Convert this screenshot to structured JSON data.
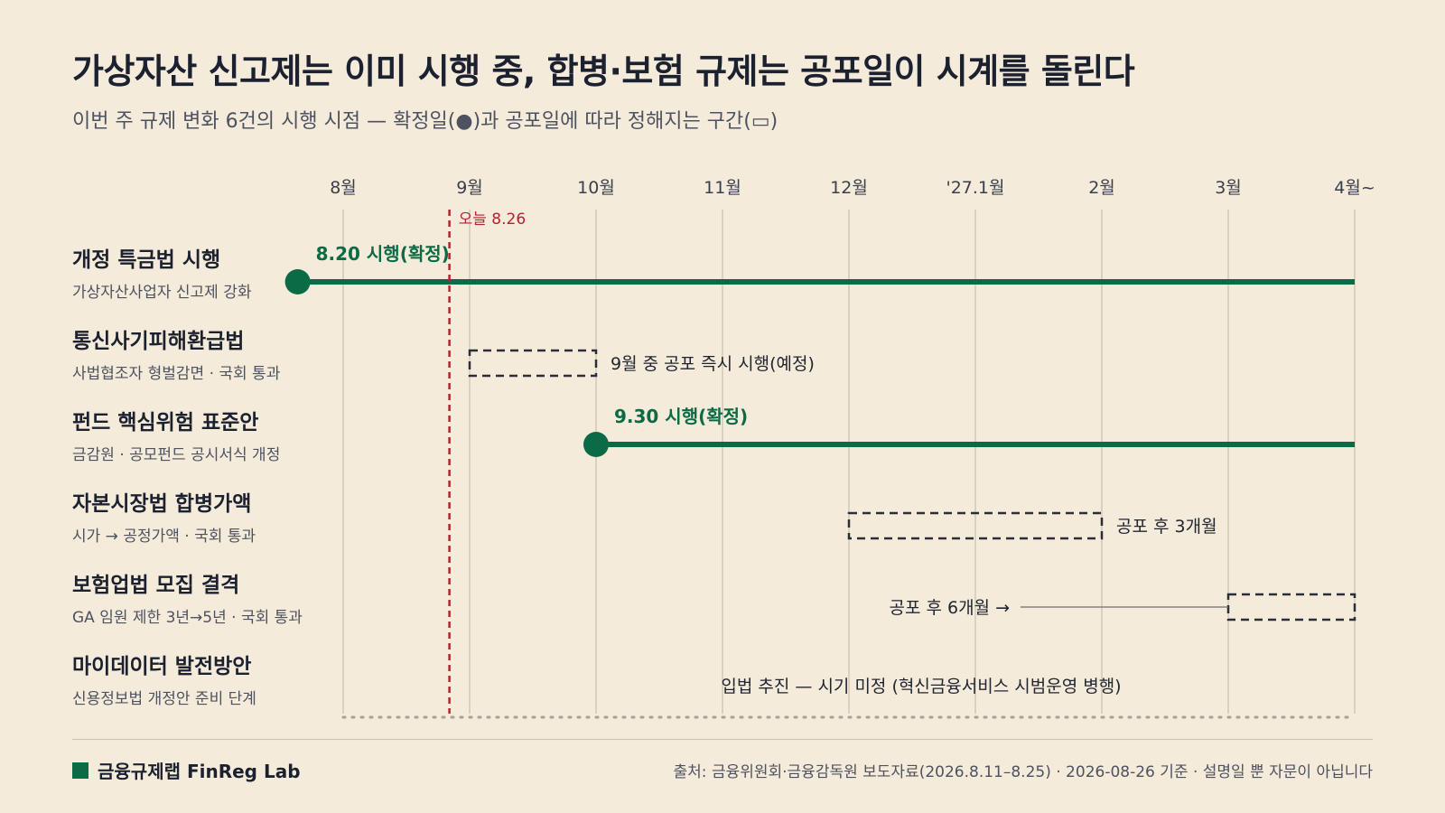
{
  "header": {
    "title": "가상자산 신고제는 이미 시행 중, 합병·보험 규제는 공포일이 시계를 돌린다",
    "subtitle": "이번 주 규제 변화 6건의 시행 시점 — 확정일(●)과 공포일에 따라 정해지는 구간(▭)"
  },
  "chart_data": {
    "type": "timeline",
    "x_axis": {
      "ticks": [
        "8월",
        "9월",
        "10월",
        "11월",
        "12월",
        "'27.1월",
        "2월",
        "3월",
        "4월~"
      ]
    },
    "today_marker": {
      "label": "오늘 8.26",
      "date": "2026-08-26",
      "month_pos": 0.84,
      "color": "#b5212f"
    },
    "colors": {
      "confirmed": "#0b6b46",
      "dashed": "#2a2e38",
      "grid": "#d2c9b8",
      "today": "#b5212f",
      "dotted": "#a8a294"
    },
    "rows": [
      {
        "title": "개정 특금법 시행",
        "sub": "가상자산사업자 신고제 강화",
        "kind": "confirmed",
        "start": -0.36,
        "end": 8,
        "label": "8.20 시행(확정)"
      },
      {
        "title": "통신사기피해환급법",
        "sub": "사법협조자 형벌감면 · 국회 통과",
        "kind": "range",
        "start": 1,
        "end": 2,
        "label": "9월 중 공포 즉시 시행(예정)",
        "label_side": "right"
      },
      {
        "title": "펀드 핵심위험 표준안",
        "sub": "금감원 · 공모펀드 공시서식 개정",
        "kind": "confirmed",
        "start": 2,
        "end": 8,
        "label": "9.30 시행(확정)"
      },
      {
        "title": "자본시장법 합병가액",
        "sub": "시가 → 공정가액 · 국회 통과",
        "kind": "range",
        "start": 4,
        "end": 6,
        "label": "공포 후 3개월",
        "label_side": "right"
      },
      {
        "title": "보험업법 모집 결격",
        "sub": "GA 임원 제한 3년→5년 · 국회 통과",
        "kind": "range",
        "start": 7,
        "end": 8,
        "label": "공포 후 6개월 →",
        "label_side": "left"
      },
      {
        "title": "마이데이터 발전방안",
        "sub": "신용정보법 개정안 준비 단계",
        "kind": "undetermined",
        "start": 0,
        "end": 8,
        "label": "입법 추진 — 시기 미정 (혁신금융서비스 시범운영 병행)"
      }
    ]
  },
  "footer": {
    "brand": "금융규제랩 FinReg Lab",
    "source": "출처: 금융위원회·금융감독원 보도자료(2026.8.11–8.25) · 2026-08-26 기준 · 설명일 뿐 자문이 아닙니다"
  }
}
